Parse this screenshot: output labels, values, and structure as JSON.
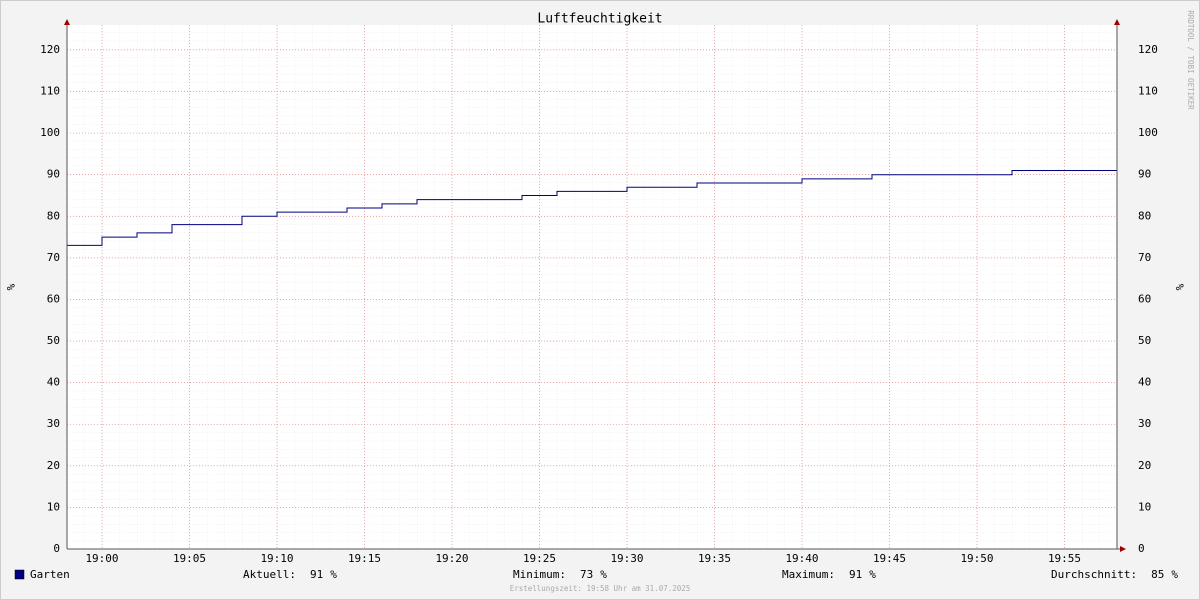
{
  "chart_data": {
    "type": "line",
    "step": "post",
    "title": "Luftfeuchtigkeit",
    "y_label": "%",
    "y2_label": "%",
    "watermark": "RRDTOOL / TOBI OETIKER",
    "x": [
      "18:58",
      "19:00",
      "19:02",
      "19:04",
      "19:08",
      "19:10",
      "19:14",
      "19:16",
      "19:18",
      "19:24",
      "19:26",
      "19:30",
      "19:34",
      "19:40",
      "19:44",
      "19:52",
      "19:58"
    ],
    "series": [
      {
        "name": "Garten",
        "color": "#000080",
        "values": [
          73,
          75,
          76,
          78,
          80,
          81,
          82,
          83,
          84,
          85,
          86,
          87,
          88,
          89,
          90,
          91,
          91
        ]
      }
    ],
    "xlim": [
      "18:58",
      "19:58"
    ],
    "xticks": [
      "19:00",
      "19:05",
      "19:10",
      "19:15",
      "19:20",
      "19:25",
      "19:30",
      "19:35",
      "19:40",
      "19:45",
      "19:50",
      "19:55"
    ],
    "ylim": [
      0,
      126
    ],
    "yticks": [
      0,
      10,
      20,
      30,
      40,
      50,
      60,
      70,
      80,
      90,
      100,
      110,
      120
    ],
    "grid": true,
    "stats": [
      {
        "label": "Aktuell:",
        "value": 91,
        "unit": "%"
      },
      {
        "label": "Minimum:",
        "value": 73,
        "unit": "%"
      },
      {
        "label": "Maximum:",
        "value": 91,
        "unit": "%"
      },
      {
        "label": "Durchschnitt:",
        "value": 85,
        "unit": "%"
      }
    ],
    "footer": "Erstellungszeit: 19:58 Uhr am 31.07.2025"
  }
}
